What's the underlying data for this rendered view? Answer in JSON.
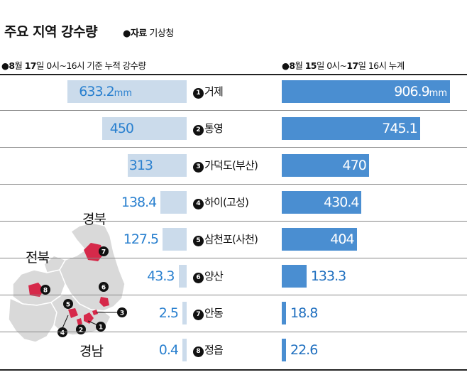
{
  "title": "주요 지역 강수량",
  "source_prefix": "●자료",
  "source_name": "기상청",
  "header_left": {
    "bullet": "●",
    "m": "8",
    "m_unit": "월",
    "d": "17",
    "d_unit": "일",
    "rest": "0시~16시 기준 누적 강수량"
  },
  "header_right": {
    "bullet": "●",
    "m": "8",
    "m_unit": "월",
    "d1": "15",
    "d1_unit": "일",
    "mid": "0시~",
    "d2": "17",
    "d2_unit": "일",
    "rest": "16시 누계"
  },
  "unit": "mm",
  "regions": {
    "gyeongbuk": "경북",
    "jeonbuk": "전북",
    "gyeongnam": "경남"
  },
  "colors": {
    "left_bar": "#cbdbeb",
    "right_bar": "#4a8ed1",
    "left_text": "#2a80cf",
    "marker": "#d6294a",
    "map": "#d9d9d9"
  },
  "chart_data": {
    "type": "bar",
    "categories": [
      {
        "no": "1",
        "name": "거제"
      },
      {
        "no": "2",
        "name": "통영"
      },
      {
        "no": "3",
        "name": "가덕도(부산)"
      },
      {
        "no": "4",
        "name": "하이(고성)"
      },
      {
        "no": "5",
        "name": "삼천포(사천)"
      },
      {
        "no": "6",
        "name": "양산"
      },
      {
        "no": "7",
        "name": "안동"
      },
      {
        "no": "8",
        "name": "정읍"
      }
    ],
    "series": [
      {
        "values": [
          633.2,
          450,
          313,
          138.4,
          127.5,
          43.3,
          2.5,
          0.4
        ],
        "labels": [
          "633.2",
          "450",
          "313",
          "138.4",
          "127.5",
          "43.3",
          "2.5",
          "0.4"
        ]
      },
      {
        "values": [
          906.9,
          745.1,
          470,
          430.4,
          404,
          133.3,
          18.8,
          22.6
        ],
        "labels": [
          "906.9",
          "745.1",
          "470",
          "430.4",
          "404",
          "133.3",
          "18.8",
          "22.6"
        ]
      }
    ]
  }
}
